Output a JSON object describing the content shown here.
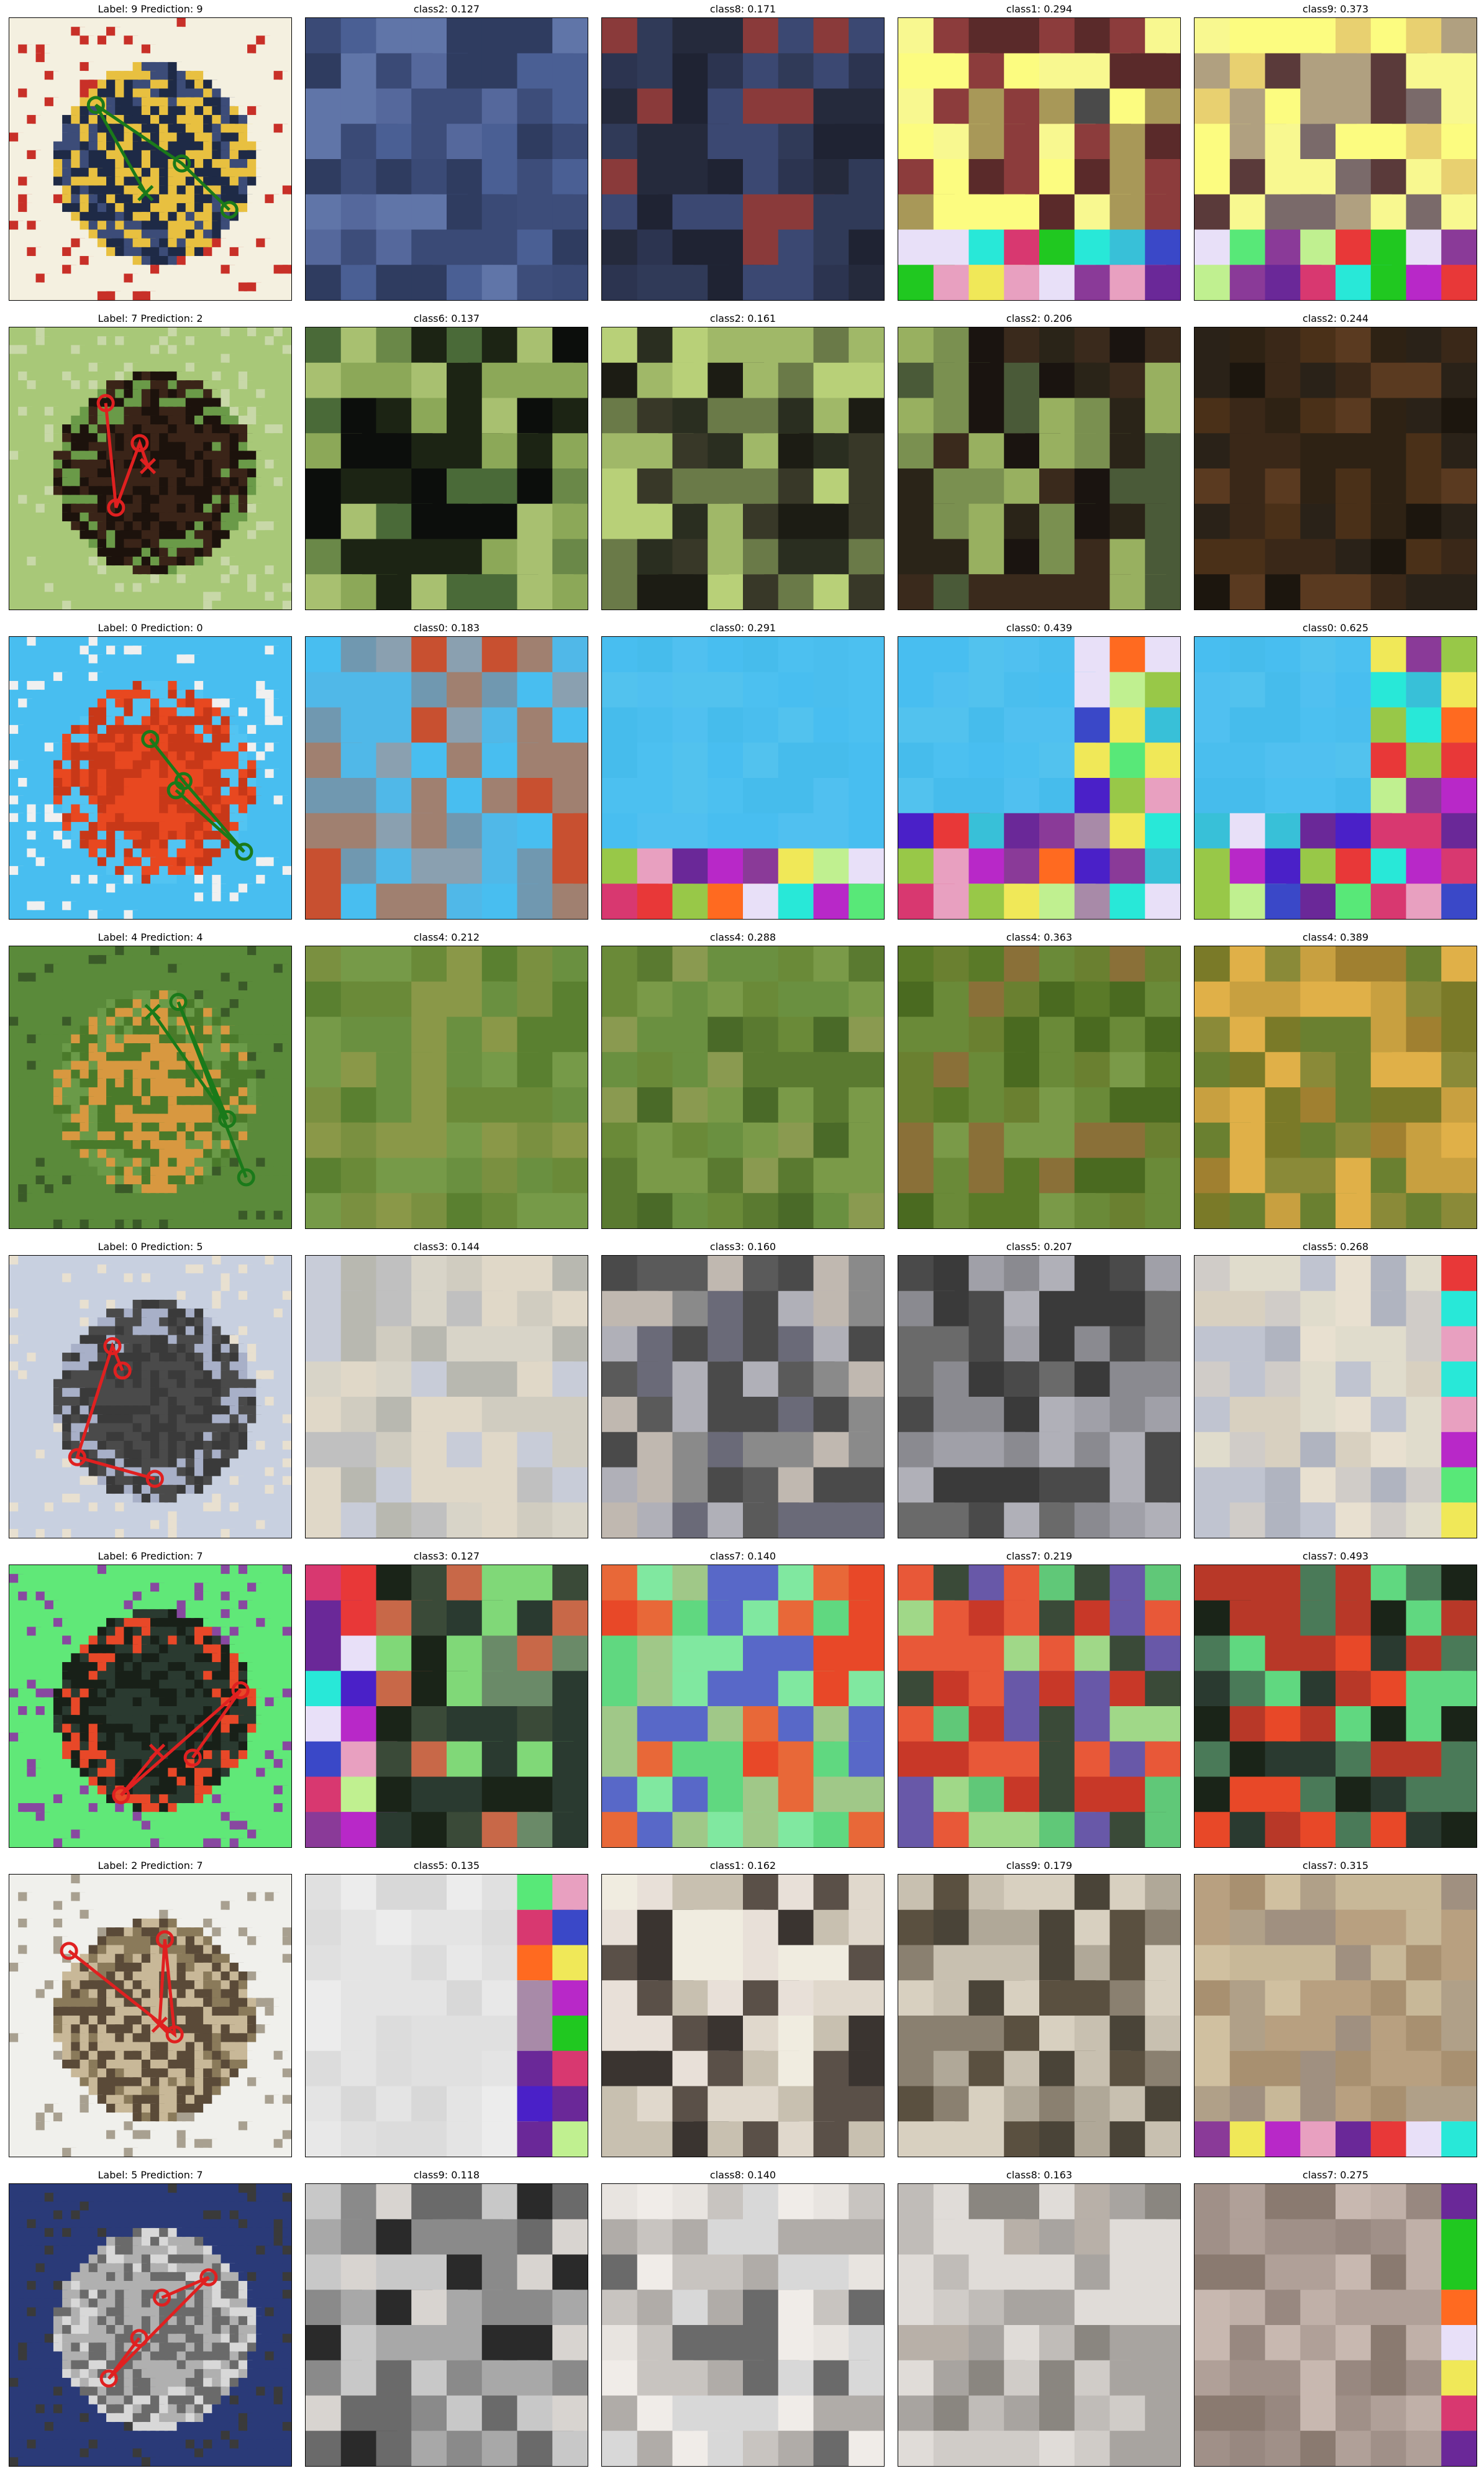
{
  "figure": {
    "rows": [
      {
        "title": "Label: 9 Prediction: 9",
        "marker_color": "#1a7a1a",
        "marker_end": "x",
        "image_theme": [
          "#f4f0e0",
          "#3c4c78",
          "#1e2a46",
          "#e8c040",
          "#c83028"
        ],
        "crops": [
          {
            "title": "class2: 0.127",
            "palette": [
              "#3d4d7a",
              "#4a5f94",
              "#55689c",
              "#2f3c60",
              "#6075a8",
              "#3a4a76"
            ],
            "patch": false
          },
          {
            "title": "class8: 0.171",
            "palette": [
              "#2c3450",
              "#3b4872",
              "#252a3c",
              "#1f2333",
              "#303a58",
              "#8a3a3a"
            ],
            "patch": false
          },
          {
            "title": "class1: 0.294",
            "palette": [
              "#5a2a2a",
              "#8c3c3c",
              "#4a4a4a",
              "#a89858",
              "#fcfc80",
              "#f8f890"
            ],
            "patch": "bottom2"
          },
          {
            "title": "class9: 0.373",
            "palette": [
              "#5a3a3a",
              "#7a6a6a",
              "#b0a080",
              "#e8d070",
              "#fcfc80",
              "#f8f890"
            ],
            "patch": "bottom2"
          }
        ]
      },
      {
        "title": "Label: 7 Prediction: 2",
        "marker_color": "#e02020",
        "marker_end": "x",
        "image_theme": [
          "#a8c878",
          "#6a9a48",
          "#3a2418",
          "#1c120c",
          "#c8d8a8"
        ],
        "crops": [
          {
            "title": "class6: 0.137",
            "palette": [
              "#a8c070",
              "#8ca858",
              "#6a8848",
              "#1c2414",
              "#0c0e0c",
              "#4a6a38"
            ],
            "patch": false
          },
          {
            "title": "class2: 0.161",
            "palette": [
              "#b8d078",
              "#a0b868",
              "#6a7a48",
              "#2a2e20",
              "#1c1c14",
              "#383828"
            ],
            "patch": false
          },
          {
            "title": "class2: 0.206",
            "palette": [
              "#98b060",
              "#7a9050",
              "#4a5a38",
              "#2a2418",
              "#1a1410",
              "#3a2a1c"
            ],
            "patch": false
          },
          {
            "title": "class2: 0.244",
            "palette": [
              "#2a2218",
              "#1c160e",
              "#3a2818",
              "#4a3018",
              "#2e2214",
              "#5a3a20"
            ],
            "patch": false
          }
        ]
      },
      {
        "title": "Label: 0 Prediction: 0",
        "marker_color": "#1a7a1a",
        "marker_end": "o",
        "image_theme": [
          "#48bef0",
          "#52c4f2",
          "#e84820",
          "#c83818",
          "#f0f0f0"
        ],
        "crops": [
          {
            "title": "class0: 0.183",
            "palette": [
              "#48bef0",
              "#8aa0b0",
              "#c85030",
              "#a08070",
              "#50b8e8",
              "#7098b0"
            ],
            "patch": false
          },
          {
            "title": "class0: 0.291",
            "palette": [
              "#48bef0",
              "#4cc0f0",
              "#52c2ee",
              "#46bcec",
              "#50c0f0",
              "#4abeee"
            ],
            "patch": "bottom2"
          },
          {
            "title": "class0: 0.439",
            "palette": [
              "#48bef0",
              "#4cc0f0",
              "#52c2ee",
              "#46bcec",
              "#50c0f0",
              "#4abeee"
            ],
            "patch": "right4"
          },
          {
            "title": "class0: 0.625",
            "palette": [
              "#48bef0",
              "#4cc0f0",
              "#52c2ee",
              "#46bcec",
              "#50c0f0",
              "#4abeee"
            ],
            "patch": "right5"
          }
        ]
      },
      {
        "title": "Label: 4 Prediction: 4",
        "marker_color": "#1a7a1a",
        "marker_end": "x",
        "image_theme": [
          "#5a8a3a",
          "#6a9a48",
          "#4a7a2a",
          "#d89840",
          "#3a5a28"
        ],
        "crops": [
          {
            "title": "class4: 0.212",
            "palette": [
              "#7a9040",
              "#6a8a38",
              "#5a8030",
              "#8a9848",
              "#6a9040",
              "#769a48"
            ],
            "patch": false
          },
          {
            "title": "class4: 0.288",
            "palette": [
              "#6a8a38",
              "#7a9a48",
              "#5a7a30",
              "#8a9a50",
              "#4a6a28",
              "#6a9040"
            ],
            "patch": false
          },
          {
            "title": "class4: 0.363",
            "palette": [
              "#5a7a28",
              "#6a8a38",
              "#7a9a48",
              "#8a7038",
              "#4a6a20",
              "#6a8030"
            ],
            "patch": false
          },
          {
            "title": "class4: 0.389",
            "palette": [
              "#7a7a28",
              "#c8a040",
              "#e0b048",
              "#a08030",
              "#8a8a38",
              "#6a8030"
            ],
            "patch": false
          }
        ]
      },
      {
        "title": "Label: 0 Prediction: 5",
        "marker_color": "#e02020",
        "marker_end": "o",
        "image_theme": [
          "#c8d0e0",
          "#a8b0c8",
          "#4a4a4a",
          "#3a3a3a",
          "#e8e0d0"
        ],
        "crops": [
          {
            "title": "class3: 0.144",
            "palette": [
              "#c8ccd8",
              "#d8d4c8",
              "#e0d8c8",
              "#c0c0c0",
              "#b8b8b0",
              "#d0ccc0"
            ],
            "patch": false
          },
          {
            "title": "class3: 0.160",
            "palette": [
              "#4a4a4a",
              "#5a5a5a",
              "#8a8a8a",
              "#b0b0b8",
              "#c0b8b0",
              "#6a6a78"
            ],
            "patch": false
          },
          {
            "title": "class5: 0.207",
            "palette": [
              "#4a4a4a",
              "#6a6a6a",
              "#8a8a90",
              "#b0b0b8",
              "#3a3a3a",
              "#a0a0a8"
            ],
            "patch": false
          },
          {
            "title": "class5: 0.268",
            "palette": [
              "#c0c4d0",
              "#d0ccc8",
              "#e0dccc",
              "#b0b4c0",
              "#d8d0c0",
              "#e8e0d0"
            ],
            "patch": "right1"
          }
        ]
      },
      {
        "title": "Label: 6 Prediction: 7",
        "marker_color": "#e02020",
        "marker_end": "x",
        "image_theme": [
          "#60e878",
          "#e84828",
          "#2a3a30",
          "#182018",
          "#8848a0"
        ],
        "crops": [
          {
            "title": "class3: 0.127",
            "palette": [
              "#2a3a30",
              "#1a2418",
              "#3a4a38",
              "#6a8a68",
              "#80d878",
              "#c86848"
            ],
            "patch": "left2"
          },
          {
            "title": "class7: 0.140",
            "palette": [
              "#80e8a0",
              "#e86838",
              "#e84828",
              "#5868c8",
              "#60d880",
              "#a0c888"
            ],
            "patch": false
          },
          {
            "title": "class7: 0.219",
            "palette": [
              "#a0d888",
              "#e85838",
              "#c83828",
              "#6858a8",
              "#3a4a38",
              "#60c878"
            ],
            "patch": false
          },
          {
            "title": "class7: 0.493",
            "palette": [
              "#e84828",
              "#b83828",
              "#60d880",
              "#1a2418",
              "#2a3a30",
              "#4a7a58"
            ],
            "patch": false
          }
        ]
      },
      {
        "title": "Label: 2 Prediction: 7",
        "marker_color": "#e02020",
        "marker_end": "x",
        "image_theme": [
          "#f0f0ec",
          "#8a7a5a",
          "#5a4a38",
          "#c8b898",
          "#a8a090"
        ],
        "crops": [
          {
            "title": "class5: 0.135",
            "palette": [
              "#e8e8e8",
              "#e0e0e0",
              "#ececec",
              "#dcdcdc",
              "#e4e4e4",
              "#d8d8d8"
            ],
            "patch": "right2"
          },
          {
            "title": "class1: 0.162",
            "palette": [
              "#e8e0d8",
              "#f0ece0",
              "#e0d8cc",
              "#c8c0b0",
              "#5a5048",
              "#3a3430"
            ],
            "patch": false
          },
          {
            "title": "class9: 0.179",
            "palette": [
              "#d8d0c0",
              "#c8c0b0",
              "#8a8070",
              "#5a5040",
              "#4a4438",
              "#b0a898"
            ],
            "patch": false
          },
          {
            "title": "class7: 0.315",
            "palette": [
              "#a89070",
              "#b8a080",
              "#c8b898",
              "#a09080",
              "#b0a088",
              "#d0c0a0"
            ],
            "patch": "bottom1"
          }
        ]
      },
      {
        "title": "Label: 5 Prediction: 7",
        "marker_color": "#e02020",
        "marker_end": "o",
        "image_theme": [
          "#2a3a78",
          "#d8d8d8",
          "#b0b0b0",
          "#6a6a6a",
          "#3a3a3a"
        ],
        "crops": [
          {
            "title": "class9: 0.118",
            "palette": [
              "#a8a8a8",
              "#c8c8c8",
              "#8a8a8a",
              "#d8d4d0",
              "#6a6a6a",
              "#2a2a2a"
            ],
            "patch": false
          },
          {
            "title": "class8: 0.140",
            "palette": [
              "#d8d8d8",
              "#e8e4e0",
              "#c8c4c0",
              "#b0aca8",
              "#6a6a6a",
              "#f0ece8"
            ],
            "patch": false
          },
          {
            "title": "class8: 0.163",
            "palette": [
              "#d0ccc8",
              "#c0bcb8",
              "#e0dcd8",
              "#a8a4a0",
              "#b8b0a8",
              "#8a8680"
            ],
            "patch": false
          },
          {
            "title": "class7: 0.275",
            "palette": [
              "#b0a098",
              "#a09088",
              "#c0b0a8",
              "#8a7a70",
              "#c8b8b0",
              "#988880"
            ],
            "patch": "right1"
          }
        ]
      }
    ]
  }
}
